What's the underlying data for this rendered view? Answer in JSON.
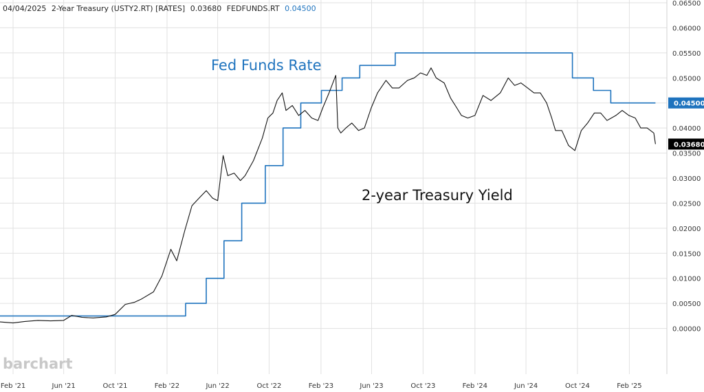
{
  "header": {
    "date": "04/04/2025",
    "symbol1_label": "2-Year Treasury (USTY2.RT) [RATES]",
    "symbol1_value": "0.03680",
    "symbol2_label": "FEDFUNDS.RT",
    "symbol2_value": "0.04500"
  },
  "watermark": "barchart",
  "annotations": {
    "fed": "Fed Funds Rate",
    "treasury": "2-year Treasury Yield"
  },
  "price_badges": {
    "fed": "0.04500",
    "treasury": "0.03680"
  },
  "colors": {
    "fed": "#1e73be",
    "treasury": "#111111",
    "badge_fed": "#1e73be",
    "badge_treasury": "#000000"
  },
  "chart_data": {
    "type": "line",
    "title": "",
    "xlabel": "",
    "ylabel": "",
    "ylim": [
      -0.005,
      0.065
    ],
    "grid": true,
    "y_ticks": [
      "0.06500",
      "0.06000",
      "0.05500",
      "0.05000",
      "0.04500",
      "0.04000",
      "0.03500",
      "0.03000",
      "0.02500",
      "0.02000",
      "0.01500",
      "0.01000",
      "0.00500",
      "0.00000"
    ],
    "y_tick_values": [
      0.065,
      0.06,
      0.055,
      0.05,
      0.045,
      0.04,
      0.035,
      0.03,
      0.025,
      0.02,
      0.015,
      0.01,
      0.005,
      0.0
    ],
    "x_ticks": [
      {
        "label": "Feb '21",
        "date": "2021-02-01"
      },
      {
        "label": "Jun '21",
        "date": "2021-06-01"
      },
      {
        "label": "Oct '21",
        "date": "2021-10-01"
      },
      {
        "label": "Feb '22",
        "date": "2022-02-01"
      },
      {
        "label": "Jun '22",
        "date": "2022-06-01"
      },
      {
        "label": "Oct '22",
        "date": "2022-10-01"
      },
      {
        "label": "Feb '23",
        "date": "2023-02-01"
      },
      {
        "label": "Jun '23",
        "date": "2023-06-01"
      },
      {
        "label": "Oct '23",
        "date": "2023-10-01"
      },
      {
        "label": "Feb '24",
        "date": "2024-02-01"
      },
      {
        "label": "Jun '24",
        "date": "2024-06-01"
      },
      {
        "label": "Oct '24",
        "date": "2024-10-01"
      },
      {
        "label": "Feb '25",
        "date": "2025-02-01"
      }
    ],
    "xlim": [
      "2021-01-01",
      "2025-05-01"
    ],
    "series": [
      {
        "name": "FEDFUNDS.RT",
        "step": true,
        "points": [
          {
            "x": "2021-01-01",
            "y": 0.0025
          },
          {
            "x": "2022-03-17",
            "y": 0.005
          },
          {
            "x": "2022-05-05",
            "y": 0.01
          },
          {
            "x": "2022-06-16",
            "y": 0.0175
          },
          {
            "x": "2022-07-28",
            "y": 0.025
          },
          {
            "x": "2022-09-22",
            "y": 0.0325
          },
          {
            "x": "2022-11-03",
            "y": 0.04
          },
          {
            "x": "2022-12-15",
            "y": 0.045
          },
          {
            "x": "2023-02-02",
            "y": 0.0475
          },
          {
            "x": "2023-03-23",
            "y": 0.05
          },
          {
            "x": "2023-05-04",
            "y": 0.0525
          },
          {
            "x": "2023-07-27",
            "y": 0.055
          },
          {
            "x": "2024-09-19",
            "y": 0.05
          },
          {
            "x": "2024-11-08",
            "y": 0.0475
          },
          {
            "x": "2024-12-19",
            "y": 0.045
          },
          {
            "x": "2025-04-04",
            "y": 0.045
          }
        ]
      },
      {
        "name": "2-Year Treasury (USTY2.RT)",
        "step": false,
        "points": [
          {
            "x": "2021-01-01",
            "y": 0.0013
          },
          {
            "x": "2021-02-01",
            "y": 0.0011
          },
          {
            "x": "2021-03-01",
            "y": 0.0014
          },
          {
            "x": "2021-04-01",
            "y": 0.0016
          },
          {
            "x": "2021-05-01",
            "y": 0.0015
          },
          {
            "x": "2021-06-01",
            "y": 0.0016
          },
          {
            "x": "2021-06-20",
            "y": 0.0026
          },
          {
            "x": "2021-07-15",
            "y": 0.0022
          },
          {
            "x": "2021-08-10",
            "y": 0.0021
          },
          {
            "x": "2021-09-10",
            "y": 0.0023
          },
          {
            "x": "2021-10-01",
            "y": 0.0028
          },
          {
            "x": "2021-10-25",
            "y": 0.0048
          },
          {
            "x": "2021-11-15",
            "y": 0.0052
          },
          {
            "x": "2021-12-01",
            "y": 0.0058
          },
          {
            "x": "2021-12-31",
            "y": 0.0073
          },
          {
            "x": "2022-01-20",
            "y": 0.0105
          },
          {
            "x": "2022-02-10",
            "y": 0.0158
          },
          {
            "x": "2022-02-24",
            "y": 0.0135
          },
          {
            "x": "2022-03-15",
            "y": 0.0195
          },
          {
            "x": "2022-04-01",
            "y": 0.0245
          },
          {
            "x": "2022-04-20",
            "y": 0.0262
          },
          {
            "x": "2022-05-05",
            "y": 0.0275
          },
          {
            "x": "2022-05-20",
            "y": 0.026
          },
          {
            "x": "2022-06-01",
            "y": 0.0255
          },
          {
            "x": "2022-06-14",
            "y": 0.0345
          },
          {
            "x": "2022-06-25",
            "y": 0.0305
          },
          {
            "x": "2022-07-10",
            "y": 0.031
          },
          {
            "x": "2022-07-25",
            "y": 0.0295
          },
          {
            "x": "2022-08-05",
            "y": 0.0305
          },
          {
            "x": "2022-08-25",
            "y": 0.0335
          },
          {
            "x": "2022-09-15",
            "y": 0.038
          },
          {
            "x": "2022-09-28",
            "y": 0.042
          },
          {
            "x": "2022-10-10",
            "y": 0.043
          },
          {
            "x": "2022-10-20",
            "y": 0.0455
          },
          {
            "x": "2022-11-01",
            "y": 0.047
          },
          {
            "x": "2022-11-10",
            "y": 0.0435
          },
          {
            "x": "2022-11-25",
            "y": 0.0445
          },
          {
            "x": "2022-12-10",
            "y": 0.0425
          },
          {
            "x": "2022-12-25",
            "y": 0.0435
          },
          {
            "x": "2023-01-10",
            "y": 0.042
          },
          {
            "x": "2023-01-25",
            "y": 0.0415
          },
          {
            "x": "2023-02-05",
            "y": 0.044
          },
          {
            "x": "2023-02-20",
            "y": 0.047
          },
          {
            "x": "2023-03-08",
            "y": 0.0505
          },
          {
            "x": "2023-03-13",
            "y": 0.04
          },
          {
            "x": "2023-03-20",
            "y": 0.039
          },
          {
            "x": "2023-04-01",
            "y": 0.04
          },
          {
            "x": "2023-04-15",
            "y": 0.041
          },
          {
            "x": "2023-05-01",
            "y": 0.0395
          },
          {
            "x": "2023-05-15",
            "y": 0.04
          },
          {
            "x": "2023-05-31",
            "y": 0.044
          },
          {
            "x": "2023-06-15",
            "y": 0.047
          },
          {
            "x": "2023-07-05",
            "y": 0.0495
          },
          {
            "x": "2023-07-20",
            "y": 0.048
          },
          {
            "x": "2023-08-05",
            "y": 0.048
          },
          {
            "x": "2023-08-25",
            "y": 0.0495
          },
          {
            "x": "2023-09-10",
            "y": 0.05
          },
          {
            "x": "2023-09-25",
            "y": 0.051
          },
          {
            "x": "2023-10-10",
            "y": 0.0505
          },
          {
            "x": "2023-10-20",
            "y": 0.052
          },
          {
            "x": "2023-11-01",
            "y": 0.05
          },
          {
            "x": "2023-11-20",
            "y": 0.049
          },
          {
            "x": "2023-12-05",
            "y": 0.046
          },
          {
            "x": "2023-12-20",
            "y": 0.044
          },
          {
            "x": "2023-12-31",
            "y": 0.0425
          },
          {
            "x": "2024-01-15",
            "y": 0.042
          },
          {
            "x": "2024-02-01",
            "y": 0.0425
          },
          {
            "x": "2024-02-20",
            "y": 0.0465
          },
          {
            "x": "2024-03-10",
            "y": 0.0455
          },
          {
            "x": "2024-04-01",
            "y": 0.047
          },
          {
            "x": "2024-04-20",
            "y": 0.05
          },
          {
            "x": "2024-05-05",
            "y": 0.0485
          },
          {
            "x": "2024-05-20",
            "y": 0.049
          },
          {
            "x": "2024-06-05",
            "y": 0.048
          },
          {
            "x": "2024-06-20",
            "y": 0.047
          },
          {
            "x": "2024-07-05",
            "y": 0.047
          },
          {
            "x": "2024-07-20",
            "y": 0.045
          },
          {
            "x": "2024-08-01",
            "y": 0.042
          },
          {
            "x": "2024-08-10",
            "y": 0.0395
          },
          {
            "x": "2024-08-25",
            "y": 0.0395
          },
          {
            "x": "2024-09-10",
            "y": 0.0365
          },
          {
            "x": "2024-09-25",
            "y": 0.0355
          },
          {
            "x": "2024-10-10",
            "y": 0.0395
          },
          {
            "x": "2024-10-25",
            "y": 0.041
          },
          {
            "x": "2024-11-10",
            "y": 0.043
          },
          {
            "x": "2024-11-25",
            "y": 0.043
          },
          {
            "x": "2024-12-10",
            "y": 0.0415
          },
          {
            "x": "2024-12-31",
            "y": 0.0425
          },
          {
            "x": "2025-01-15",
            "y": 0.0435
          },
          {
            "x": "2025-01-31",
            "y": 0.0425
          },
          {
            "x": "2025-02-15",
            "y": 0.042
          },
          {
            "x": "2025-02-28",
            "y": 0.04
          },
          {
            "x": "2025-03-15",
            "y": 0.04
          },
          {
            "x": "2025-03-31",
            "y": 0.039
          },
          {
            "x": "2025-04-04",
            "y": 0.0368
          }
        ]
      }
    ]
  }
}
